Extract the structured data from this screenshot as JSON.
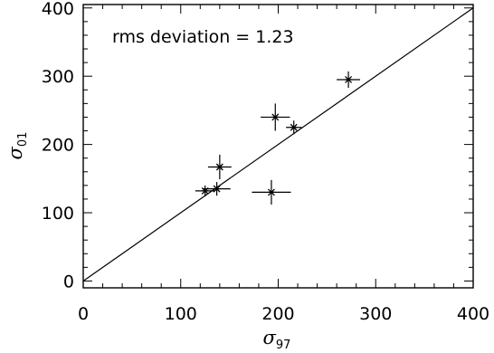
{
  "chart_data": {
    "type": "scatter",
    "annotation": "rms deviation = 1.23",
    "xlabel": "σ",
    "xlabel_sub": "97",
    "ylabel": "σ",
    "ylabel_sub": "01",
    "xlim": [
      0,
      400
    ],
    "ylim": [
      -10,
      405
    ],
    "xticks": [
      0,
      100,
      200,
      300,
      400
    ],
    "yticks": [
      0,
      100,
      200,
      300,
      400
    ],
    "reference_line": "y = x",
    "points": [
      {
        "x": 125,
        "y": 132,
        "xerr": 10,
        "yerr": 8
      },
      {
        "x": 137,
        "y": 135,
        "xerr": 14,
        "yerr": 10
      },
      {
        "x": 140,
        "y": 167,
        "xerr": 12,
        "yerr": 18
      },
      {
        "x": 193,
        "y": 130,
        "xerr": 20,
        "yerr": 18
      },
      {
        "x": 197,
        "y": 240,
        "xerr": 15,
        "yerr": 20
      },
      {
        "x": 216,
        "y": 225,
        "xerr": 8,
        "yerr": 10
      },
      {
        "x": 272,
        "y": 295,
        "xerr": 12,
        "yerr": 12
      }
    ]
  }
}
